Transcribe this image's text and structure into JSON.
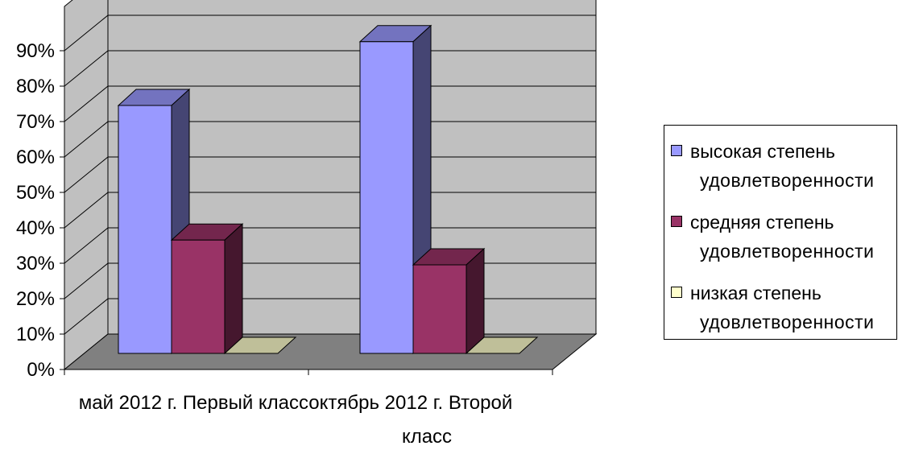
{
  "chart_data": {
    "type": "bar",
    "categories": [
      "май 2012 г. Первый класс",
      "октябрь 2012 г. Второй класс"
    ],
    "category_label_lines": [
      "май 2012 г. Первый классоктябрь 2012 г. Второй",
      "класс"
    ],
    "series": [
      {
        "name": "высокая степень удовлетворенности",
        "name_lines": [
          "высокая степень",
          "удовлетворенности"
        ],
        "values": [
          70,
          88
        ],
        "color": "#9999ff"
      },
      {
        "name": "средняя степень удовлетворенности",
        "name_lines": [
          "средняя степень",
          "удовлетворенности"
        ],
        "values": [
          32,
          25
        ],
        "color": "#993366"
      },
      {
        "name": "низкая степень удовлетворенности",
        "name_lines": [
          "низкая степень",
          "удовлетворенности"
        ],
        "values": [
          0,
          0
        ],
        "color": "#ffffcc"
      }
    ],
    "ylim": [
      0,
      90
    ],
    "yticks": [
      "0%",
      "10%",
      "20%",
      "30%",
      "40%",
      "50%",
      "60%",
      "70%",
      "80%",
      "90%"
    ],
    "y_format": "percent",
    "grid": true,
    "style": "3d-column",
    "legend_position": "right",
    "wall_color": "#c0c0c0",
    "floor_color": "#808080"
  }
}
